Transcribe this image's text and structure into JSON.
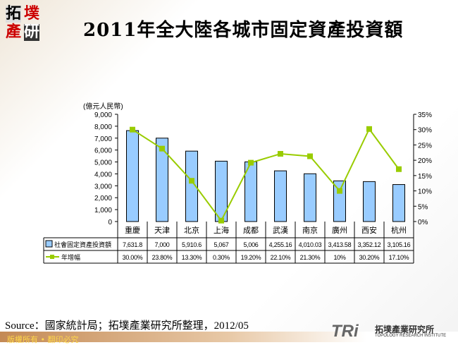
{
  "header": {
    "logo": [
      "拓",
      "墣",
      "產",
      "研"
    ],
    "title": "2011年全大陸各城市固定資產投資額"
  },
  "chart_data": {
    "type": "bar+line",
    "unit_label": "(億元人民幣)",
    "categories": [
      "重慶",
      "天津",
      "北京",
      "上海",
      "成都",
      "武漢",
      "南京",
      "廣州",
      "西安",
      "杭州"
    ],
    "series": [
      {
        "name": "社會固定資產投資額",
        "type": "bar",
        "axis": "left",
        "color": "#99ccff",
        "values": [
          7631.8,
          7000,
          5910.6,
          5067,
          5006,
          4255.16,
          4010.03,
          3413.58,
          3352.12,
          3105.16
        ],
        "labels": [
          "7,631.8",
          "7,000",
          "5,910.6",
          "5,067",
          "5,006",
          "4,255.16",
          "4,010.03",
          "3,413.58",
          "3,352.12",
          "3,105.16"
        ]
      },
      {
        "name": "年增幅",
        "type": "line",
        "axis": "right",
        "color": "#99cc00",
        "values": [
          30.0,
          23.8,
          13.3,
          0.3,
          19.2,
          22.1,
          21.3,
          10,
          30.2,
          17.1
        ],
        "labels": [
          "30.00%",
          "23.80%",
          "13.30%",
          "0.30%",
          "19.20%",
          "22.10%",
          "21.30%",
          "10%",
          "30.20%",
          "17.10%"
        ]
      }
    ],
    "left_axis": {
      "range": [
        0,
        9000
      ],
      "ticks": [
        "0",
        "1,000",
        "2,000",
        "3,000",
        "4,000",
        "5,000",
        "6,000",
        "7,000",
        "8,000",
        "9,000"
      ]
    },
    "right_axis": {
      "range": [
        0,
        35
      ],
      "ticks": [
        "0%",
        "5%",
        "10%",
        "15%",
        "20%",
        "25%",
        "30%",
        "35%"
      ]
    },
    "data_table": true,
    "grid": false
  },
  "footer": {
    "source": "Source：國家統計局；拓墣產業研究所整理，2012/05",
    "copyright": "版權所有 • 翻印必究",
    "brand_mark": "TRi",
    "brand_name": "拓墣產業研究所",
    "brand_en": "TOPOLOGY RESEARCH INSTITUTE"
  }
}
